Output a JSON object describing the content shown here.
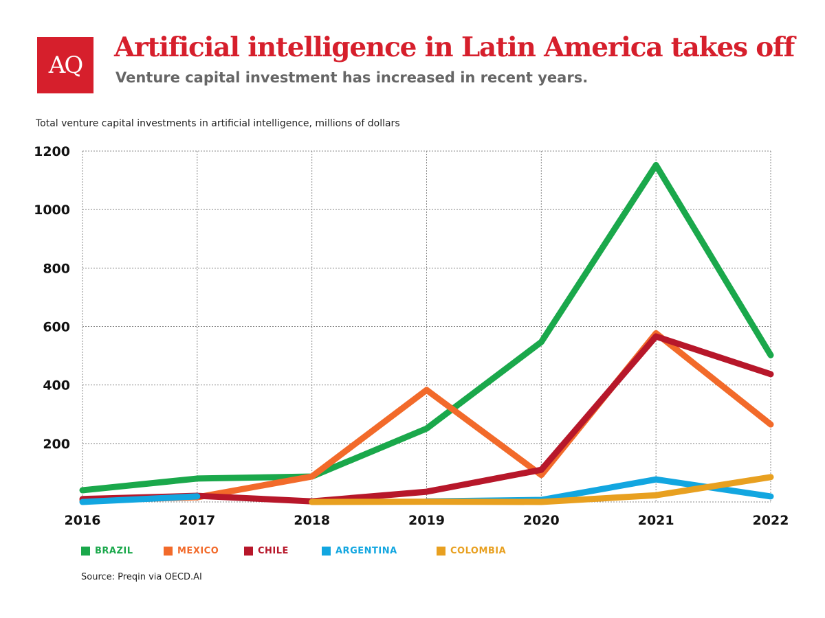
{
  "logo": "AQ",
  "title": "Artificial intelligence in Latin America takes off",
  "subtitle": "Venture capital investment has increased in recent years.",
  "source": "Source: Preqin via OECD.AI",
  "chart_data": {
    "type": "line",
    "title": "Total venture capital investments in artificial intelligence, millions of dollars",
    "x": [
      2016,
      2017,
      2018,
      2019,
      2020,
      2021,
      2022
    ],
    "ylim": [
      0,
      1200
    ],
    "yticks": [
      200,
      400,
      600,
      800,
      1000,
      1200
    ],
    "grid": true,
    "legend_placement": "bottom",
    "series": [
      {
        "name": "BRAZIL",
        "color": "#1aa84b",
        "values": [
          40,
          80,
          87,
          251,
          547,
          1152,
          502
        ]
      },
      {
        "name": "MEXICO",
        "color": "#f26a2a",
        "values": [
          5,
          16,
          87,
          383,
          92,
          577,
          265
        ]
      },
      {
        "name": "CHILE",
        "color": "#b7172a",
        "values": [
          10,
          21,
          2,
          35,
          110,
          566,
          437
        ]
      },
      {
        "name": "ARGENTINA",
        "color": "#12a6e0",
        "values": [
          0,
          19,
          null,
          2,
          7,
          77,
          19
        ]
      },
      {
        "name": "COLOMBIA",
        "color": "#e8a020",
        "values": [
          null,
          null,
          0,
          1,
          0,
          23,
          85
        ]
      }
    ]
  }
}
